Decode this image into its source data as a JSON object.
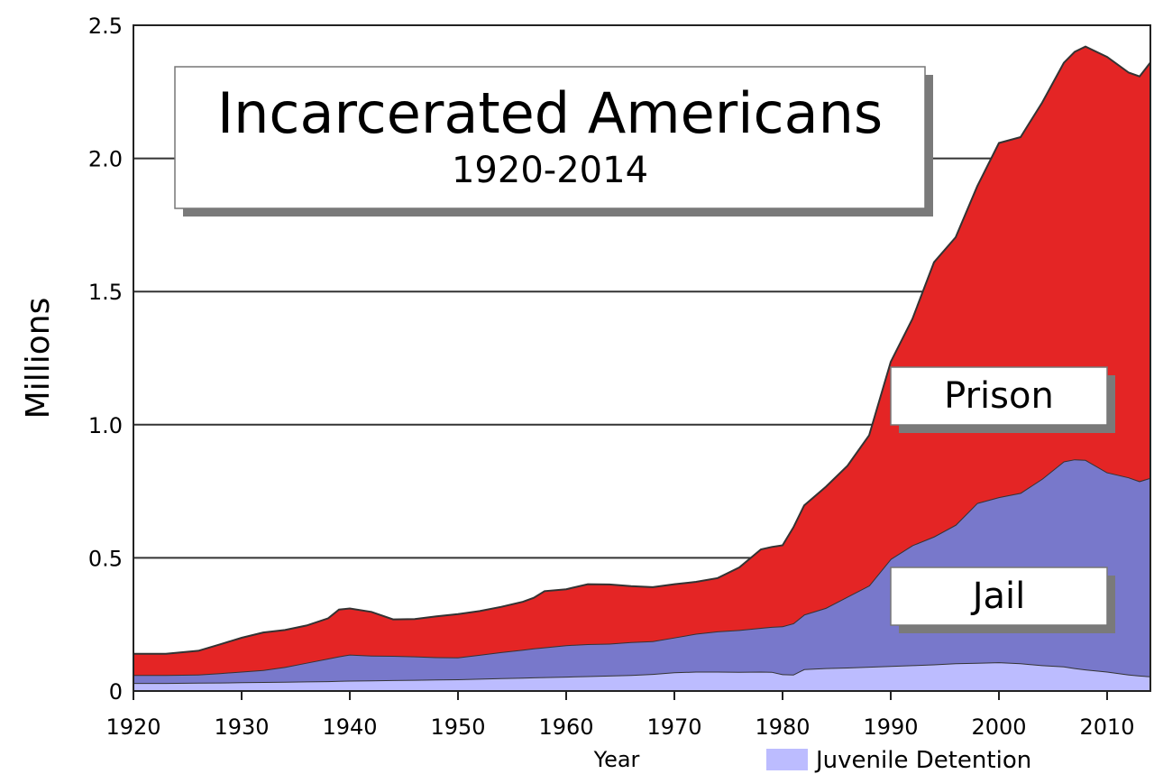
{
  "chart_data": {
    "type": "area",
    "title": "Incarcerated Americans",
    "subtitle": "1920-2014",
    "xlabel": "Year",
    "ylabel": "Millions",
    "xlim": [
      1920,
      2014
    ],
    "ylim": [
      0,
      2.5
    ],
    "xticks": [
      1920,
      1930,
      1940,
      1950,
      1960,
      1970,
      1980,
      1990,
      2000,
      2010
    ],
    "yticks": [
      0,
      0.5,
      1.0,
      1.5,
      2.0,
      2.5
    ],
    "ytick_labels": [
      "0",
      "0.5",
      "1.0",
      "1.5",
      "2.0",
      "2.5"
    ],
    "grid": "horizontal",
    "stacked": true,
    "x": [
      1920,
      1923,
      1926,
      1928,
      1930,
      1932,
      1934,
      1936,
      1938,
      1939,
      1940,
      1942,
      1944,
      1946,
      1948,
      1950,
      1952,
      1954,
      1956,
      1957,
      1958,
      1960,
      1962,
      1964,
      1966,
      1968,
      1970,
      1972,
      1974,
      1976,
      1978,
      1979,
      1980,
      1981,
      1982,
      1984,
      1986,
      1988,
      1990,
      1992,
      1994,
      1996,
      1998,
      2000,
      2002,
      2004,
      2006,
      2007,
      2008,
      2010,
      2012,
      2013,
      2014
    ],
    "series": [
      {
        "name": "Juvenile Detention",
        "color": "#bcbcff",
        "values": [
          0.03,
          0.03,
          0.031,
          0.032,
          0.033,
          0.034,
          0.035,
          0.036,
          0.037,
          0.038,
          0.039,
          0.04,
          0.041,
          0.042,
          0.043,
          0.044,
          0.046,
          0.048,
          0.05,
          0.051,
          0.052,
          0.054,
          0.056,
          0.058,
          0.06,
          0.064,
          0.07,
          0.073,
          0.073,
          0.072,
          0.073,
          0.072,
          0.063,
          0.062,
          0.082,
          0.086,
          0.088,
          0.091,
          0.094,
          0.097,
          0.1,
          0.104,
          0.106,
          0.108,
          0.104,
          0.097,
          0.092,
          0.086,
          0.081,
          0.073,
          0.062,
          0.058,
          0.055
        ]
      },
      {
        "name": "Jail",
        "color": "#7878cb",
        "values": [
          0.03,
          0.03,
          0.031,
          0.035,
          0.04,
          0.045,
          0.055,
          0.07,
          0.085,
          0.092,
          0.098,
          0.093,
          0.091,
          0.088,
          0.084,
          0.082,
          0.09,
          0.098,
          0.105,
          0.109,
          0.112,
          0.118,
          0.12,
          0.12,
          0.124,
          0.123,
          0.131,
          0.142,
          0.151,
          0.157,
          0.164,
          0.169,
          0.18,
          0.192,
          0.205,
          0.226,
          0.266,
          0.305,
          0.402,
          0.45,
          0.48,
          0.52,
          0.6,
          0.62,
          0.64,
          0.7,
          0.77,
          0.784,
          0.787,
          0.748,
          0.74,
          0.73,
          0.745
        ]
      },
      {
        "name": "Prison",
        "color": "#e42525",
        "values": [
          0.08,
          0.08,
          0.089,
          0.108,
          0.127,
          0.141,
          0.139,
          0.14,
          0.151,
          0.176,
          0.173,
          0.164,
          0.137,
          0.14,
          0.153,
          0.163,
          0.164,
          0.17,
          0.18,
          0.19,
          0.211,
          0.21,
          0.225,
          0.222,
          0.21,
          0.203,
          0.2,
          0.195,
          0.2,
          0.235,
          0.295,
          0.3,
          0.304,
          0.36,
          0.41,
          0.455,
          0.492,
          0.564,
          0.74,
          0.85,
          1.03,
          1.08,
          1.19,
          1.33,
          1.336,
          1.413,
          1.497,
          1.53,
          1.552,
          1.56,
          1.52,
          1.52,
          1.56
        ]
      }
    ],
    "legend": {
      "position": "bottom-right",
      "entries": [
        "Juvenile Detention"
      ]
    },
    "annotations": [
      "Prison",
      "Jail"
    ]
  },
  "colors": {
    "prison": "#e42525",
    "jail": "#7878cb",
    "juvenile": "#bcbcff",
    "shadow": "#7a7a7a",
    "gridline": "#333333"
  }
}
